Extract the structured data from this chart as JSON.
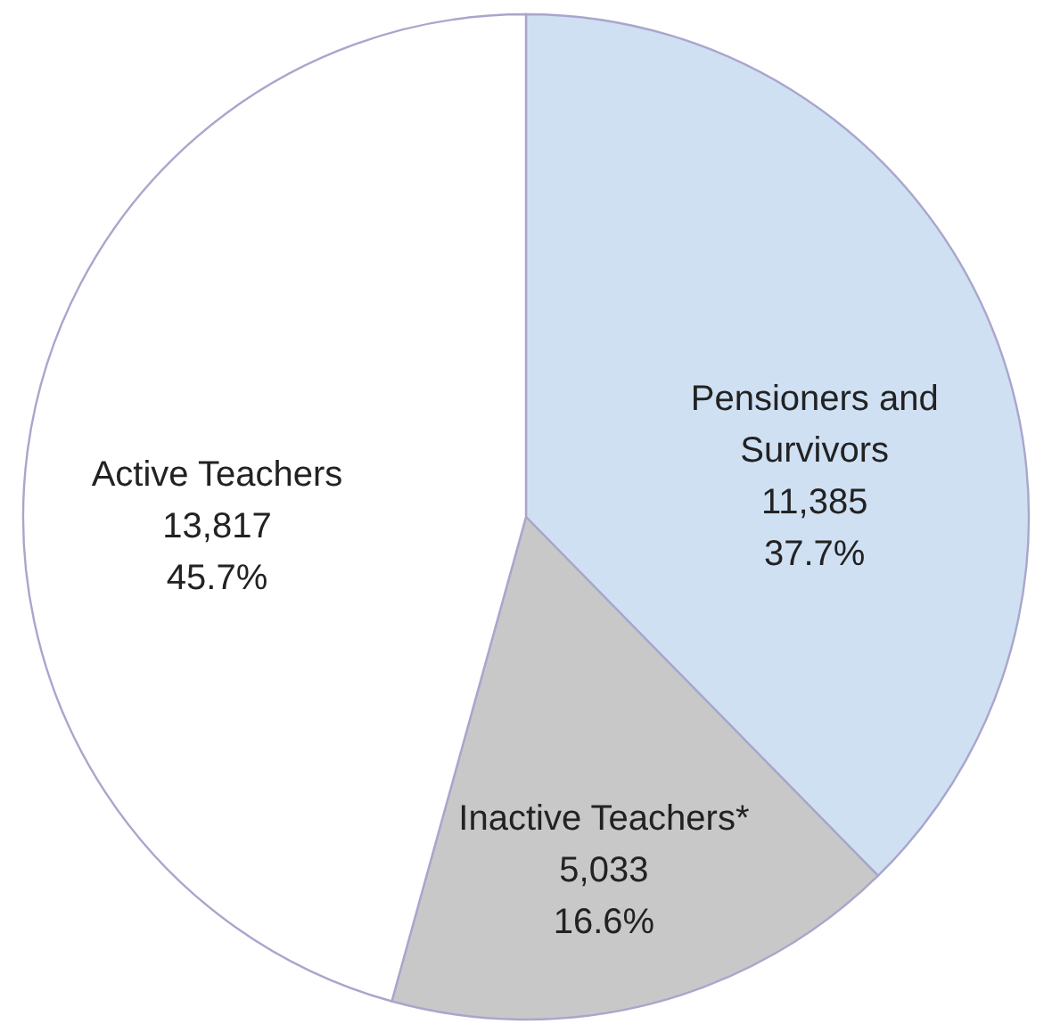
{
  "chart_data": {
    "type": "pie",
    "categories": [
      "Pensioners and Survivors",
      "Inactive Teachers*",
      "Active Teachers"
    ],
    "values": [
      11385,
      5033,
      13817
    ],
    "value_labels": [
      "11,385\n37.7%",
      "5,033\n16.6%",
      "13,817\n45.7%"
    ],
    "colors": [
      "#cfe0f3",
      "#c8c8c8",
      "#ffffff"
    ]
  }
}
